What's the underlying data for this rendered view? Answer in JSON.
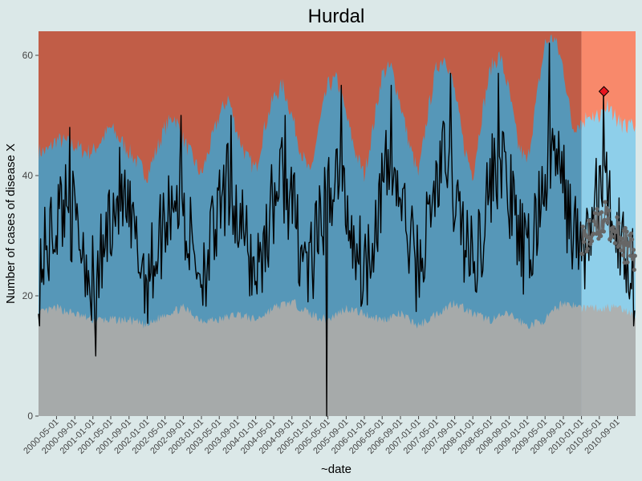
{
  "chart_data": {
    "type": "area",
    "title": "Hurdal",
    "xlabel": "~date",
    "ylabel": "Number of cases of disease X",
    "x_range": [
      "2000-01-01",
      "2010-12-31"
    ],
    "ylim": [
      0,
      64
    ],
    "y_ticks": [
      0,
      20,
      40,
      60
    ],
    "x_ticks": [
      "2000-05-01",
      "2000-09-01",
      "2001-01-01",
      "2001-05-01",
      "2001-09-01",
      "2002-01-01",
      "2002-05-01",
      "2002-09-01",
      "2003-01-01",
      "2003-05-01",
      "2003-09-01",
      "2004-01-01",
      "2004-05-01",
      "2004-09-01",
      "2005-01-01",
      "2005-05-01",
      "2005-09-01",
      "2006-01-01",
      "2006-05-01",
      "2006-09-01",
      "2007-01-01",
      "2007-05-01",
      "2007-09-01",
      "2008-01-01",
      "2008-05-01",
      "2008-09-01",
      "2009-01-01",
      "2009-05-01",
      "2009-09-01",
      "2010-01-01",
      "2010-05-01",
      "2010-09-01"
    ],
    "grid": false,
    "history_end": "2010-01-01",
    "bands": {
      "lower": {
        "color_history": "#adb1b1",
        "color_forecast": "#adb1b1",
        "points": [
          [
            "2000-01-01",
            17
          ],
          [
            "2000-05-01",
            18
          ],
          [
            "2000-09-01",
            17
          ],
          [
            "2001-01-01",
            16
          ],
          [
            "2001-05-01",
            16
          ],
          [
            "2001-09-01",
            16
          ],
          [
            "2002-01-01",
            15
          ],
          [
            "2002-05-01",
            17
          ],
          [
            "2002-09-01",
            18
          ],
          [
            "2003-01-01",
            16
          ],
          [
            "2003-05-01",
            16
          ],
          [
            "2003-09-01",
            17
          ],
          [
            "2004-01-01",
            16
          ],
          [
            "2004-05-01",
            18
          ],
          [
            "2004-09-01",
            19
          ],
          [
            "2005-01-01",
            17
          ],
          [
            "2005-05-01",
            16
          ],
          [
            "2005-09-01",
            18
          ],
          [
            "2006-01-01",
            17
          ],
          [
            "2006-05-01",
            16
          ],
          [
            "2006-09-01",
            17
          ],
          [
            "2007-01-01",
            15
          ],
          [
            "2007-05-01",
            17
          ],
          [
            "2007-09-01",
            19
          ],
          [
            "2008-01-01",
            17
          ],
          [
            "2008-05-01",
            16
          ],
          [
            "2008-09-01",
            17
          ],
          [
            "2009-01-01",
            15
          ],
          [
            "2009-05-01",
            16
          ],
          [
            "2009-09-01",
            19
          ],
          [
            "2010-01-01",
            18
          ],
          [
            "2010-05-01",
            18
          ],
          [
            "2010-09-01",
            18
          ],
          [
            "2010-12-31",
            17
          ]
        ]
      },
      "upper": {
        "color_history": "#5a9ec0",
        "color_forecast": "#8ecfea",
        "points": [
          [
            "2000-01-01",
            44
          ],
          [
            "2000-03-01",
            44
          ],
          [
            "2000-05-01",
            46
          ],
          [
            "2000-09-01",
            45
          ],
          [
            "2000-11-01",
            44
          ],
          [
            "2001-01-01",
            44
          ],
          [
            "2001-03-01",
            46
          ],
          [
            "2001-05-01",
            48
          ],
          [
            "2001-07-01",
            46
          ],
          [
            "2001-09-01",
            44
          ],
          [
            "2001-11-01",
            42
          ],
          [
            "2002-01-01",
            40
          ],
          [
            "2002-03-01",
            44
          ],
          [
            "2002-05-01",
            48
          ],
          [
            "2002-07-01",
            50
          ],
          [
            "2002-09-01",
            46
          ],
          [
            "2002-11-01",
            43
          ],
          [
            "2003-01-01",
            40
          ],
          [
            "2003-03-01",
            45
          ],
          [
            "2003-05-01",
            50
          ],
          [
            "2003-07-01",
            53
          ],
          [
            "2003-09-01",
            47
          ],
          [
            "2003-11-01",
            43
          ],
          [
            "2004-01-01",
            41
          ],
          [
            "2004-03-01",
            48
          ],
          [
            "2004-05-01",
            53
          ],
          [
            "2004-07-01",
            55
          ],
          [
            "2004-09-01",
            50
          ],
          [
            "2004-11-01",
            44
          ],
          [
            "2005-01-01",
            40
          ],
          [
            "2005-03-01",
            48
          ],
          [
            "2005-05-01",
            55
          ],
          [
            "2005-07-01",
            56
          ],
          [
            "2005-09-01",
            50
          ],
          [
            "2005-11-01",
            44
          ],
          [
            "2006-01-01",
            40
          ],
          [
            "2006-03-01",
            48
          ],
          [
            "2006-05-01",
            57
          ],
          [
            "2006-07-01",
            58
          ],
          [
            "2006-09-01",
            52
          ],
          [
            "2006-11-01",
            45
          ],
          [
            "2007-01-01",
            40
          ],
          [
            "2007-03-01",
            50
          ],
          [
            "2007-05-01",
            58
          ],
          [
            "2007-07-01",
            60
          ],
          [
            "2007-09-01",
            54
          ],
          [
            "2007-11-01",
            45
          ],
          [
            "2008-01-01",
            40
          ],
          [
            "2008-03-01",
            50
          ],
          [
            "2008-05-01",
            58
          ],
          [
            "2008-07-01",
            60
          ],
          [
            "2008-09-01",
            54
          ],
          [
            "2008-11-01",
            45
          ],
          [
            "2009-01-01",
            42
          ],
          [
            "2009-03-01",
            52
          ],
          [
            "2009-05-01",
            62
          ],
          [
            "2009-07-01",
            63
          ],
          [
            "2009-09-01",
            58
          ],
          [
            "2009-11-01",
            48
          ],
          [
            "2010-01-01",
            49
          ],
          [
            "2010-03-01",
            50
          ],
          [
            "2010-05-01",
            50
          ],
          [
            "2010-07-01",
            52
          ],
          [
            "2010-09-01",
            49
          ],
          [
            "2010-11-01",
            48
          ],
          [
            "2010-12-31",
            48
          ]
        ]
      },
      "top": {
        "color_history": "#c9614a",
        "color_forecast": "#f8896b"
      }
    },
    "series": [
      {
        "color": "#000000",
        "anchors": [
          [
            "2000-01-01",
            25
          ],
          [
            "2000-03-01",
            28
          ],
          [
            "2000-05-01",
            33
          ],
          [
            "2000-07-01",
            36
          ],
          [
            "2000-09-01",
            32
          ],
          [
            "2000-11-01",
            28
          ],
          [
            "2001-01-01",
            22
          ],
          [
            "2001-03-01",
            26
          ],
          [
            "2001-05-01",
            34
          ],
          [
            "2001-07-01",
            37
          ],
          [
            "2001-09-01",
            32
          ],
          [
            "2001-11-01",
            27
          ],
          [
            "2002-01-01",
            23
          ],
          [
            "2002-03-01",
            27
          ],
          [
            "2002-05-01",
            33
          ],
          [
            "2002-07-01",
            38
          ],
          [
            "2002-09-01",
            33
          ],
          [
            "2002-11-01",
            28
          ],
          [
            "2003-01-01",
            24
          ],
          [
            "2003-03-01",
            28
          ],
          [
            "2003-05-01",
            33
          ],
          [
            "2003-07-01",
            38
          ],
          [
            "2003-09-01",
            33
          ],
          [
            "2003-11-01",
            28
          ],
          [
            "2004-01-01",
            24
          ],
          [
            "2004-03-01",
            29
          ],
          [
            "2004-05-01",
            36
          ],
          [
            "2004-07-01",
            40
          ],
          [
            "2004-09-01",
            35
          ],
          [
            "2004-11-01",
            28
          ],
          [
            "2005-01-01",
            24
          ],
          [
            "2005-03-01",
            30
          ],
          [
            "2005-05-01",
            37
          ],
          [
            "2005-07-01",
            41
          ],
          [
            "2005-09-01",
            35
          ],
          [
            "2005-11-01",
            29
          ],
          [
            "2006-01-01",
            24
          ],
          [
            "2006-03-01",
            31
          ],
          [
            "2006-05-01",
            38
          ],
          [
            "2006-07-01",
            42
          ],
          [
            "2006-09-01",
            36
          ],
          [
            "2006-11-01",
            29
          ],
          [
            "2007-01-01",
            24
          ],
          [
            "2007-03-01",
            31
          ],
          [
            "2007-05-01",
            39
          ],
          [
            "2007-07-01",
            43
          ],
          [
            "2007-09-01",
            37
          ],
          [
            "2007-11-01",
            30
          ],
          [
            "2008-01-01",
            25
          ],
          [
            "2008-03-01",
            31
          ],
          [
            "2008-05-01",
            39
          ],
          [
            "2008-07-01",
            43
          ],
          [
            "2008-09-01",
            37
          ],
          [
            "2008-11-01",
            30
          ],
          [
            "2009-01-01",
            25
          ],
          [
            "2009-03-01",
            32
          ],
          [
            "2009-05-01",
            40
          ],
          [
            "2009-07-01",
            44
          ],
          [
            "2009-09-01",
            38
          ],
          [
            "2009-11-01",
            31
          ],
          [
            "2010-01-01",
            27
          ],
          [
            "2010-03-01",
            31
          ],
          [
            "2010-05-01",
            38
          ],
          [
            "2010-07-01",
            36
          ],
          [
            "2010-09-01",
            31
          ],
          [
            "2010-11-01",
            27
          ],
          [
            "2010-12-31",
            24
          ]
        ],
        "spikes": [
          [
            "2001-01-20",
            10
          ],
          [
            "2005-04-20",
            0
          ],
          [
            "2009-06-01",
            62
          ],
          [
            "2010-06-01",
            54
          ],
          [
            "2000-08-01",
            48
          ],
          [
            "2002-08-15",
            50
          ],
          [
            "2003-07-20",
            50
          ],
          [
            "2004-07-20",
            50
          ],
          [
            "2005-08-01",
            55
          ],
          [
            "2006-07-01",
            55
          ],
          [
            "2007-08-01",
            57
          ],
          [
            "2008-06-20",
            57
          ],
          [
            "2010-12-20",
            15
          ],
          [
            "2000-01-10",
            15
          ]
        ]
      },
      {
        "color": "#666666",
        "marker": "circle",
        "anchors": [
          [
            "2010-01-01",
            30
          ],
          [
            "2010-02-01",
            29
          ],
          [
            "2010-03-01",
            30
          ],
          [
            "2010-04-01",
            31
          ],
          [
            "2010-05-01",
            32
          ],
          [
            "2010-06-01",
            33
          ],
          [
            "2010-07-01",
            32
          ],
          [
            "2010-08-01",
            31
          ],
          [
            "2010-09-01",
            30
          ],
          [
            "2010-10-01",
            29
          ],
          [
            "2010-11-01",
            28
          ],
          [
            "2010-12-31",
            27
          ]
        ]
      }
    ],
    "alarm": {
      "date": "2010-06-01",
      "value": 54,
      "color": "#e8141e",
      "marker": "diamond"
    }
  }
}
